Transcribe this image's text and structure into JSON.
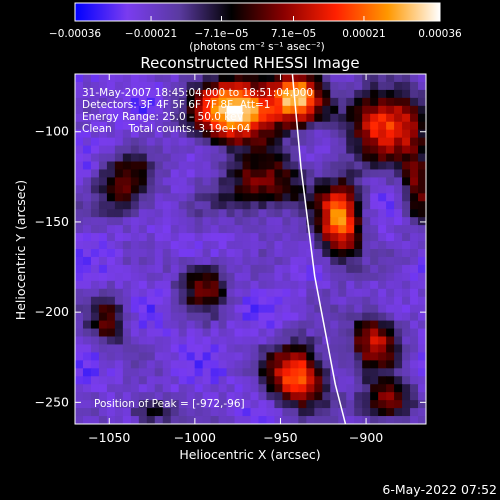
{
  "chart_data": {
    "type": "heatmap",
    "title": "Reconstructed RHESSI Image",
    "xlabel": "Heliocentric X (arcsec)",
    "ylabel": "Heliocentric Y (arcsec)",
    "xlim": [
      -1070,
      -865
    ],
    "ylim": [
      -262,
      -68
    ],
    "x_ticks": [
      -1050,
      -1000,
      -950,
      -900
    ],
    "y_ticks": [
      -250,
      -200,
      -150,
      -100
    ],
    "x_tick_labels": [
      "−1050",
      "−1000",
      "−950",
      "−900"
    ],
    "y_tick_labels": [
      "−250",
      "−200",
      "−150",
      "−100"
    ],
    "colorbar": {
      "range": [
        -0.00036,
        0.00036
      ],
      "ticks": [
        -0.00036,
        -0.00021,
        -7.1e-05,
        7.1e-05,
        0.00021,
        0.00036
      ],
      "tick_labels": [
        "−0.00036",
        "−0.00021",
        "−7.1e−05",
        "7.1e−05",
        "0.00021",
        "0.00036"
      ],
      "unit_label": "(photons cm⁻² s⁻¹ asec⁻²)",
      "colors": [
        "#0000ff",
        "#7a3cf0",
        "#5a3aa0",
        "#000000",
        "#8a0000",
        "#ff2000",
        "#ff9800",
        "#ffffff"
      ]
    },
    "annotations": [
      "31‑May‑2007 18:45:04.000 to 18:51:04.000",
      "Detectors: 3F 4F 5F 6F 7F 8F, Att=1",
      "Energy Range: 25.0 – 50.0 keV",
      "Clean     Total counts: 3.19e+04"
    ],
    "peak_label": "Position of Peak = [-972,-96]",
    "limb_curve": [
      [
        -943,
        -68
      ],
      [
        -938,
        -120
      ],
      [
        -930,
        -180
      ],
      [
        -918,
        -240
      ],
      [
        -912,
        -262
      ]
    ],
    "sources": [
      {
        "x": -975,
        "y": -88,
        "amp": 1.0,
        "sx": 18,
        "sy": 12
      },
      {
        "x": -940,
        "y": -80,
        "amp": 0.8,
        "sx": 10,
        "sy": 10
      },
      {
        "x": -888,
        "y": -95,
        "amp": 0.7,
        "sx": 16,
        "sy": 14
      },
      {
        "x": -915,
        "y": -150,
        "amp": 0.75,
        "sx": 9,
        "sy": 16
      },
      {
        "x": -960,
        "y": -130,
        "amp": 0.45,
        "sx": 20,
        "sy": 12
      },
      {
        "x": -1040,
        "y": -130,
        "amp": 0.45,
        "sx": 12,
        "sy": 12
      },
      {
        "x": -1050,
        "y": -205,
        "amp": 0.4,
        "sx": 8,
        "sy": 10
      },
      {
        "x": -995,
        "y": -185,
        "amp": 0.45,
        "sx": 10,
        "sy": 10
      },
      {
        "x": -940,
        "y": -235,
        "amp": 0.75,
        "sx": 12,
        "sy": 12
      },
      {
        "x": -895,
        "y": -215,
        "amp": 0.55,
        "sx": 10,
        "sy": 12
      },
      {
        "x": -888,
        "y": -250,
        "amp": 0.5,
        "sx": 12,
        "sy": 8
      },
      {
        "x": -1025,
        "y": -255,
        "amp": 0.35,
        "sx": 10,
        "sy": 6
      },
      {
        "x": -870,
        "y": -130,
        "amp": 0.4,
        "sx": 7,
        "sy": 16
      }
    ]
  },
  "footer": {
    "date": "6‑May‑2022 07:52"
  }
}
